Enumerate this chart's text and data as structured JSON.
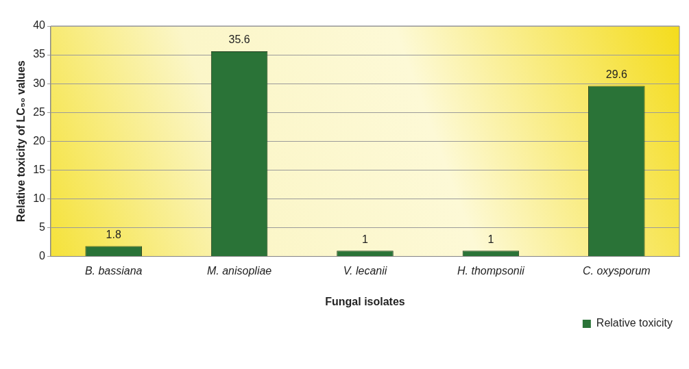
{
  "chart_data": {
    "type": "bar",
    "xlabel": "Fungal isolates",
    "ylabel": "Relative toxicity of LC₅₀ values",
    "categories": [
      "B. bassiana",
      "M. anisopliae",
      "V. lecanii",
      "H. thompsonii",
      "C. oxysporum"
    ],
    "series": [
      {
        "name": "Relative toxicity",
        "color": "#2a7337",
        "values": [
          1.8,
          35.6,
          1,
          1,
          29.6
        ]
      }
    ],
    "ylim": [
      0,
      40
    ],
    "yticks": [
      0,
      5,
      10,
      15,
      20,
      25,
      30,
      35,
      40
    ],
    "grid": "y",
    "legend": "bottom right",
    "data_labels": true
  }
}
